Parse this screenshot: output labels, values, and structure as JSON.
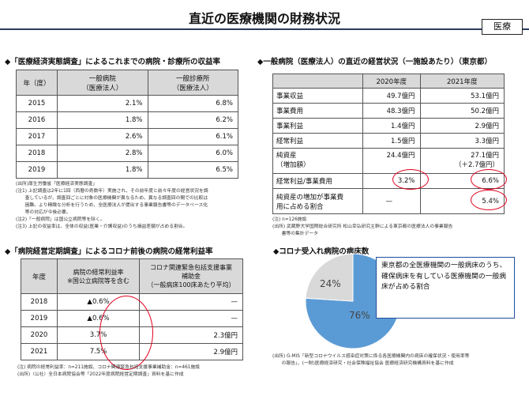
{
  "header": {
    "title": "直近の医療機関の財務状況",
    "badge": "医療"
  },
  "survey": {
    "title": "◆「医療経済実態調査」によるこれまでの病院・診療所の収益率",
    "headers": {
      "year": "年（度）",
      "hospital": "一般病院\n（医療法人）",
      "clinic": "一般診療所\n（医療法人）"
    },
    "rows": [
      {
        "year": "2015",
        "hospital": "2.1%",
        "clinic": "6.8%"
      },
      {
        "year": "2016",
        "hospital": "1.8%",
        "clinic": "6.2%"
      },
      {
        "year": "2017",
        "hospital": "2.6%",
        "clinic": "6.1%"
      },
      {
        "year": "2018",
        "hospital": "2.8%",
        "clinic": "6.0%"
      },
      {
        "year": "2019",
        "hospital": "1.8%",
        "clinic": "6.5%"
      }
    ],
    "notes": [
      "(出所)厚生労働省「医療経済実態調査」",
      "(注1) 上記調査は2年に1回（西暦の奇数年）実施され、その前年度と前々年度の経営状況を調",
      "　　査しているが、調査回ごとに対象の医療機関が異なるため、異なる調査回の間での比較は",
      "　　困難。より精緻な分析を行うため、全医療法人が提出する事業報告書等のデータベース化",
      "　　等の対応が今後必要。",
      "(注2)「一般病院」は国公立病院等を除く。",
      "(注3) 上記の収益率は、全体の収益(医業・介護収益)のうち損益差額が占める割合。"
    ]
  },
  "regular": {
    "title": "◆「病院経営定期調査」によるコロナ前後の病院の経常利益率",
    "headers": {
      "year": "年度",
      "rate": "病院の経常利益率\n※国公立病院等を含む",
      "subsidy": "コロナ関連緊急包括支援事業\n補助金\n（一般病床100床あたり平均）"
    },
    "rows": [
      {
        "year": "2018",
        "rate": "▲0.6%",
        "subsidy": "—"
      },
      {
        "year": "2019",
        "rate": "▲0.6%",
        "subsidy": "—"
      },
      {
        "year": "2020",
        "rate": "3.7%",
        "subsidy": "2.3億円"
      },
      {
        "year": "2021",
        "rate": "7.5%",
        "subsidy": "2.9億円"
      }
    ],
    "notes": [
      "(注) 病院の経常利益率：n=211施設、コロナ関連緊急包括支援事業補助金：n=461施設",
      "(出所)（公社）全日本病院協会等「2022年度病院経営定期調査」資料を基に作成"
    ]
  },
  "tokyo": {
    "title": "◆一般病院（医療法人）の直近の経営状況（一施設あたり）（東京都）",
    "headers": {
      "y2020": "2020年度",
      "y2021": "2021年度"
    },
    "rows": [
      {
        "label": "事業収益",
        "y2020": "49.7億円",
        "y2021": "53.1億円"
      },
      {
        "label": "事業費用",
        "y2020": "48.3億円",
        "y2021": "50.2億円"
      },
      {
        "label": "事業利益",
        "y2020": "1.4億円",
        "y2021": "2.9億円"
      },
      {
        "label": "経常利益",
        "y2020": "1.5億円",
        "y2021": "3.3億円"
      },
      {
        "label": "純資産\n（増加額）",
        "y2020": "24.4億円",
        "y2021": "27.1億円\n（＋2.7億円）"
      },
      {
        "label": "経常利益/事業費用",
        "y2020": "3.2%",
        "y2021": "6.6%"
      },
      {
        "label": "純資産の増加が事業費\n用に占める割合",
        "y2020": "—",
        "y2021": "5.4%"
      }
    ],
    "notes": [
      "(注) n=126施設",
      "(出所) 武蔵野大学国際総合研究所 松山幸弘研究主幹による東京都の医療法人の事業報告",
      "　　書等の集計データ"
    ]
  },
  "corona": {
    "title": "◆コロナ受入れ病院の病床数",
    "callout": "東京都の全医療機関の一般病床のうち、確保病床を有している医療機関の一般病床が占める割合",
    "notes": [
      "(出所) G-MIS「新型コロナウイルス感染症対策に係る各医療機関内の病床の確保状況・使用率等",
      "　　の報告」、(一財)医療経済研究・社会保険福祉協会 医療経済研究機構資料を基に作成"
    ]
  },
  "chart_data": {
    "type": "pie",
    "title": "",
    "slices": [
      {
        "label": "76%",
        "value": 76,
        "color": "#5b9bd5"
      },
      {
        "label": "24%",
        "value": 24,
        "color": "#d9d9d9"
      }
    ]
  }
}
